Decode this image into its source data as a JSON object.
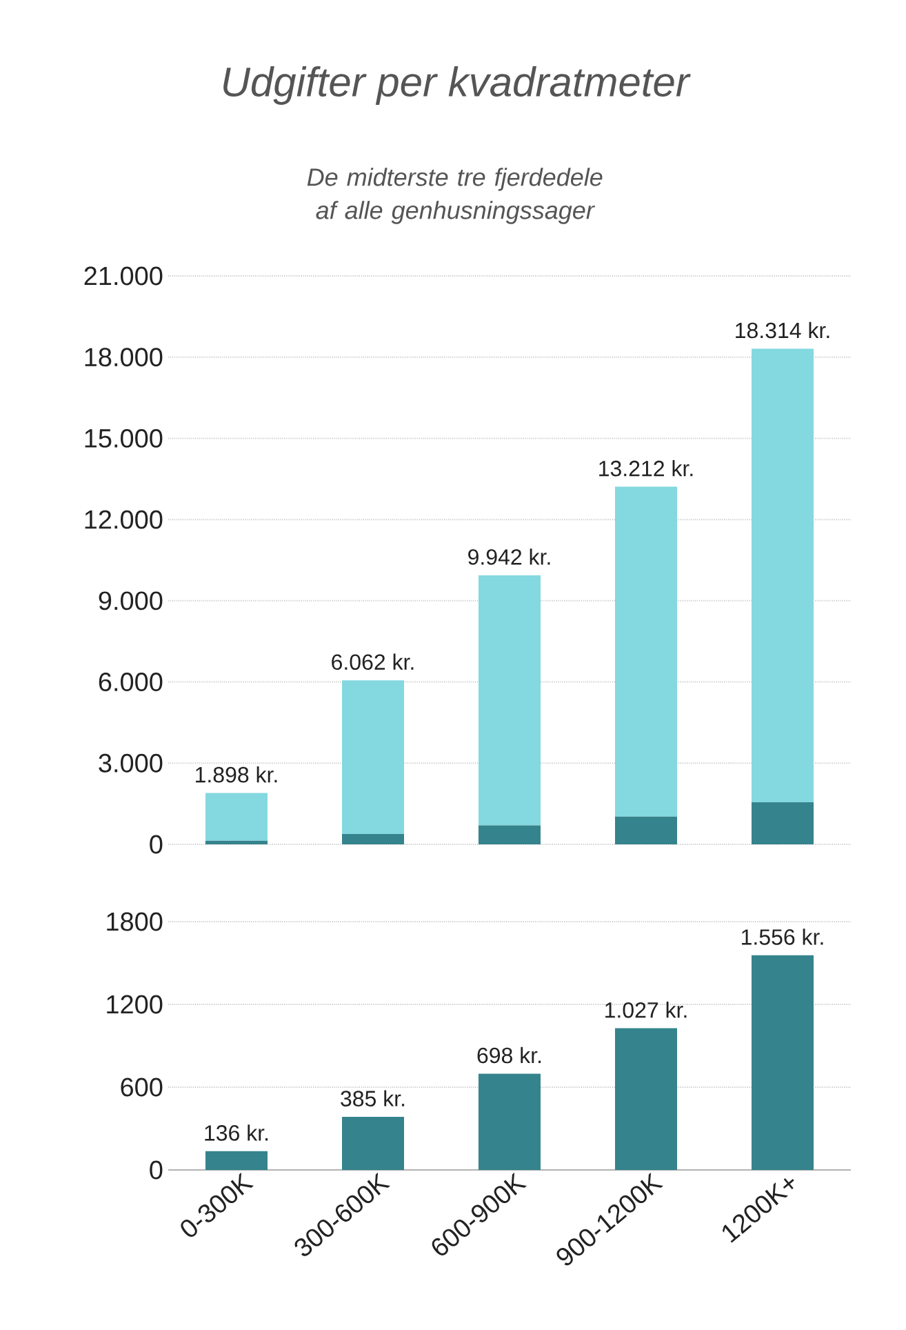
{
  "chart_data": [
    {
      "type": "bar",
      "title": "Udgifter per kvadratmeter",
      "subtitle": "De midterste tre fjerdedele af alle genhusningssager",
      "categories": [
        null,
        null,
        null,
        null,
        null
      ],
      "stacked": true,
      "tick_labels": "y",
      "grid": "y",
      "ylim": [
        0,
        21000
      ],
      "yticks": [
        0,
        {
          "value": 3000,
          "label": "3.000"
        },
        {
          "value": 6000,
          "label": "6.000"
        },
        {
          "value": 9000,
          "label": "9.000"
        },
        {
          "value": 12000,
          "label": "12.000"
        },
        {
          "value": 15000,
          "label": "15.000"
        },
        {
          "value": 18000,
          "label": "18.000"
        },
        {
          "value": 21000,
          "label": "21.000"
        }
      ],
      "series": [
        {
          "color": "#35838c",
          "values": [
            136,
            385,
            698,
            1027,
            1556
          ]
        },
        {
          "color": "#84d8e0",
          "values": [
            1762,
            5677,
            9244,
            12185,
            16758
          ]
        }
      ],
      "totals": [
        "1.898 kr.",
        "6.062 kr.",
        "9.942 kr.",
        "13.212 kr.",
        "18.314 kr."
      ]
    },
    {
      "type": "bar",
      "categories": [
        "0-300K",
        "300-600K",
        "600-900K",
        "900-1200K",
        "1200K+"
      ],
      "grid": "y",
      "ylim": [
        0,
        1800
      ],
      "yticks": [
        0,
        600,
        1200,
        1800
      ],
      "color": "#35838c",
      "values": [
        136,
        385,
        698,
        1027,
        1556
      ],
      "value_labels": [
        "136 kr.",
        "385 kr.",
        "698 kr.",
        "1.027 kr.",
        "1.556 kr."
      ]
    }
  ]
}
